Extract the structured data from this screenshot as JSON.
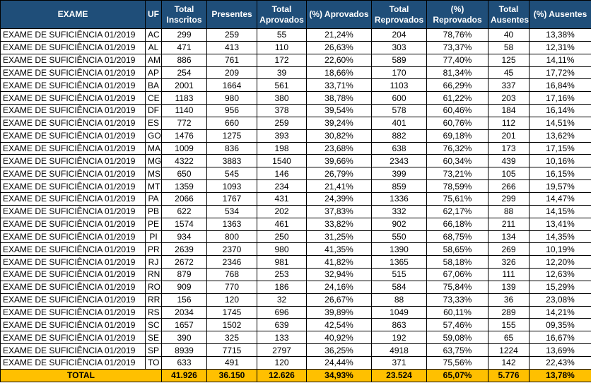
{
  "table": {
    "headers": [
      "EXAME",
      "UF",
      "Total Inscritos",
      "Presentes",
      "Total Aprovados",
      "(%) Aprovados",
      "Total Reprovados",
      "(%) Reprovados",
      "Total Ausentes",
      "(%) Ausentes"
    ],
    "rows": [
      [
        "EXAME DE SUFICIÊNCIA 01/2019",
        "AC",
        "299",
        "259",
        "55",
        "21,24%",
        "204",
        "78,76%",
        "40",
        "13,38%"
      ],
      [
        "EXAME DE SUFICIÊNCIA 01/2019",
        "AL",
        "471",
        "413",
        "110",
        "26,63%",
        "303",
        "73,37%",
        "58",
        "12,31%"
      ],
      [
        "EXAME DE SUFICIÊNCIA 01/2019",
        "AM",
        "886",
        "761",
        "172",
        "22,60%",
        "589",
        "77,40%",
        "125",
        "14,11%"
      ],
      [
        "EXAME DE SUFICIÊNCIA 01/2019",
        "AP",
        "254",
        "209",
        "39",
        "18,66%",
        "170",
        "81,34%",
        "45",
        "17,72%"
      ],
      [
        "EXAME DE SUFICIÊNCIA 01/2019",
        "BA",
        "2001",
        "1664",
        "561",
        "33,71%",
        "1103",
        "66,29%",
        "337",
        "16,84%"
      ],
      [
        "EXAME DE SUFICIÊNCIA 01/2019",
        "CE",
        "1183",
        "980",
        "380",
        "38,78%",
        "600",
        "61,22%",
        "203",
        "17,16%"
      ],
      [
        "EXAME DE SUFICIÊNCIA 01/2019",
        "DF",
        "1140",
        "956",
        "378",
        "39,54%",
        "578",
        "60,46%",
        "184",
        "16,14%"
      ],
      [
        "EXAME DE SUFICIÊNCIA 01/2019",
        "ES",
        "772",
        "660",
        "259",
        "39,24%",
        "401",
        "60,76%",
        "112",
        "14,51%"
      ],
      [
        "EXAME DE SUFICIÊNCIA 01/2019",
        "GO",
        "1476",
        "1275",
        "393",
        "30,82%",
        "882",
        "69,18%",
        "201",
        "13,62%"
      ],
      [
        "EXAME DE SUFICIÊNCIA 01/2019",
        "MA",
        "1009",
        "836",
        "198",
        "23,68%",
        "638",
        "76,32%",
        "173",
        "17,15%"
      ],
      [
        "EXAME DE SUFICIÊNCIA 01/2019",
        "MG",
        "4322",
        "3883",
        "1540",
        "39,66%",
        "2343",
        "60,34%",
        "439",
        "10,16%"
      ],
      [
        "EXAME DE SUFICIÊNCIA 01/2019",
        "MS",
        "650",
        "545",
        "146",
        "26,79%",
        "399",
        "73,21%",
        "105",
        "16,15%"
      ],
      [
        "EXAME DE SUFICIÊNCIA 01/2019",
        "MT",
        "1359",
        "1093",
        "234",
        "21,41%",
        "859",
        "78,59%",
        "266",
        "19,57%"
      ],
      [
        "EXAME DE SUFICIÊNCIA 01/2019",
        "PA",
        "2066",
        "1767",
        "431",
        "24,39%",
        "1336",
        "75,61%",
        "299",
        "14,47%"
      ],
      [
        "EXAME DE SUFICIÊNCIA 01/2019",
        "PB",
        "622",
        "534",
        "202",
        "37,83%",
        "332",
        "62,17%",
        "88",
        "14,15%"
      ],
      [
        "EXAME DE SUFICIÊNCIA 01/2019",
        "PE",
        "1574",
        "1363",
        "461",
        "33,82%",
        "902",
        "66,18%",
        "211",
        "13,41%"
      ],
      [
        "EXAME DE SUFICIÊNCIA 01/2019",
        "PI",
        "934",
        "800",
        "250",
        "31,25%",
        "550",
        "68,75%",
        "134",
        "14,35%"
      ],
      [
        "EXAME DE SUFICIÊNCIA 01/2019",
        "PR",
        "2639",
        "2370",
        "980",
        "41,35%",
        "1390",
        "58,65%",
        "269",
        "10,19%"
      ],
      [
        "EXAME DE SUFICIÊNCIA 01/2019",
        "RJ",
        "2672",
        "2346",
        "981",
        "41,82%",
        "1365",
        "58,18%",
        "326",
        "12,20%"
      ],
      [
        "EXAME DE SUFICIÊNCIA 01/2019",
        "RN",
        "879",
        "768",
        "253",
        "32,94%",
        "515",
        "67,06%",
        "111",
        "12,63%"
      ],
      [
        "EXAME DE SUFICIÊNCIA 01/2019",
        "RO",
        "909",
        "770",
        "186",
        "24,16%",
        "584",
        "75,84%",
        "139",
        "15,29%"
      ],
      [
        "EXAME DE SUFICIÊNCIA 01/2019",
        "RR",
        "156",
        "120",
        "32",
        "26,67%",
        "88",
        "73,33%",
        "36",
        "23,08%"
      ],
      [
        "EXAME DE SUFICIÊNCIA 01/2019",
        "RS",
        "2034",
        "1745",
        "696",
        "39,89%",
        "1049",
        "60,11%",
        "289",
        "14,21%"
      ],
      [
        "EXAME DE SUFICIÊNCIA 01/2019",
        "SC",
        "1657",
        "1502",
        "639",
        "42,54%",
        "863",
        "57,46%",
        "155",
        "09,35%"
      ],
      [
        "EXAME DE SUFICIÊNCIA 01/2019",
        "SE",
        "390",
        "325",
        "133",
        "40,92%",
        "192",
        "59,08%",
        "65",
        "16,67%"
      ],
      [
        "EXAME DE SUFICIÊNCIA 01/2019",
        "SP",
        "8939",
        "7715",
        "2797",
        "36,25%",
        "4918",
        "63,75%",
        "1224",
        "13,69%"
      ],
      [
        "EXAME DE SUFICIÊNCIA 01/2019",
        "TO",
        "633",
        "491",
        "120",
        "24,44%",
        "371",
        "75,56%",
        "142",
        "22,43%"
      ]
    ],
    "total": [
      "TOTAL",
      "41.926",
      "36.150",
      "12.626",
      "34,93%",
      "23.524",
      "65,07%",
      "5.776",
      "13,78%"
    ]
  }
}
